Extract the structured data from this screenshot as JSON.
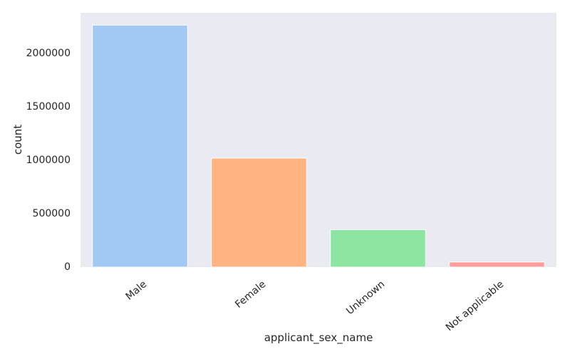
{
  "chart_data": {
    "type": "bar",
    "title": "",
    "xlabel": "applicant_sex_name",
    "ylabel": "count",
    "categories": [
      "Male",
      "Female",
      "Unknown",
      "Not applicable"
    ],
    "values": [
      2265000,
      1020000,
      350000,
      48000
    ],
    "ylim": [
      0,
      2380000
    ],
    "yticks": [
      0,
      500000,
      1000000,
      1500000,
      2000000
    ],
    "ytick_labels": [
      "0",
      "500000",
      "1000000",
      "1500000",
      "2000000"
    ],
    "grid": false,
    "legend": "none",
    "colors": [
      "#a1c9f4",
      "#ffb482",
      "#8de5a1",
      "#ff9f9b"
    ],
    "background_color": "#eaeaf2"
  }
}
